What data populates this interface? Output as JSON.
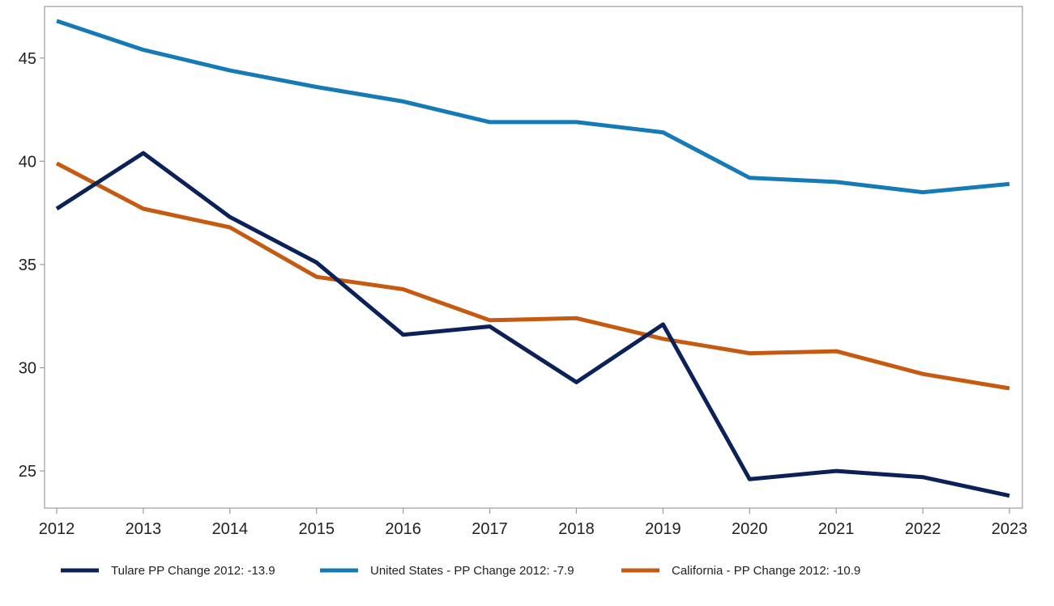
{
  "chart_data": {
    "type": "line",
    "title": "",
    "xlabel": "",
    "ylabel": "",
    "x": [
      "2012",
      "2013",
      "2014",
      "2015",
      "2016",
      "2017",
      "2018",
      "2019",
      "2020",
      "2021",
      "2022",
      "2023"
    ],
    "ylim": [
      23.2,
      47.5
    ],
    "yticks": [
      "25",
      "30",
      "35",
      "40",
      "45"
    ],
    "grid": false,
    "legend_position": "bottom",
    "series": [
      {
        "name": "Tulare PP Change 2012: -13.9",
        "color": "#0b2158",
        "values": [
          37.7,
          40.4,
          37.3,
          35.1,
          31.6,
          32.0,
          29.3,
          32.1,
          24.6,
          25.0,
          24.7,
          23.8
        ]
      },
      {
        "name": "United States - PP Change 2012: -7.9",
        "color": "#157ab5",
        "values": [
          46.8,
          45.4,
          44.4,
          43.6,
          42.9,
          41.9,
          41.9,
          41.4,
          39.2,
          39.0,
          38.5,
          38.9
        ]
      },
      {
        "name": "California - PP Change 2012: -10.9",
        "color": "#c65a11",
        "values": [
          39.9,
          37.7,
          36.8,
          34.4,
          33.8,
          32.3,
          32.4,
          31.4,
          30.7,
          30.8,
          29.7,
          29.0
        ]
      }
    ]
  }
}
